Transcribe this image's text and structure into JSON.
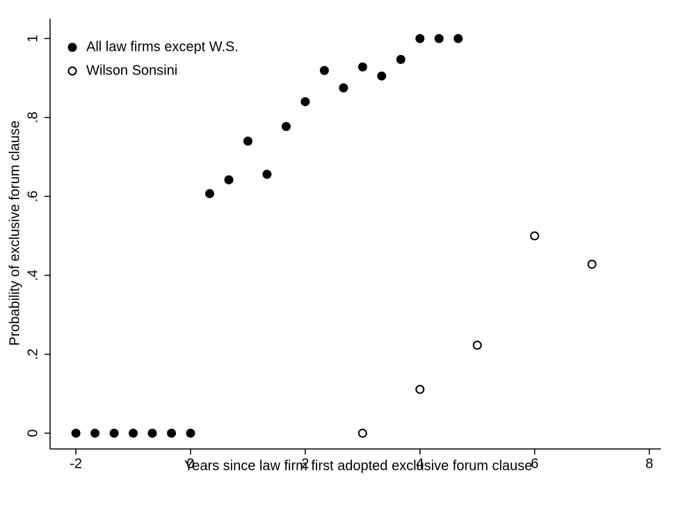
{
  "chart_data": {
    "type": "scatter",
    "xlabel": "Years since law firm first adopted exclusive forum clause",
    "ylabel": "Probability of exclusive forum clause",
    "series": [
      {
        "name": "All law firms except W.S.",
        "color": "#000000",
        "marker": "filled",
        "x": [
          -2,
          -1.667,
          -1.333,
          -1,
          -0.667,
          -0.333,
          0,
          0.333,
          0.667,
          1,
          1.333,
          1.667,
          2,
          2.333,
          2.667,
          3,
          3.333,
          3.667,
          4,
          4.333,
          4.667
        ],
        "values": [
          0,
          0,
          0,
          0,
          0,
          0,
          0,
          0.607,
          0.642,
          0.74,
          0.656,
          0.777,
          0.84,
          0.919,
          0.875,
          0.928,
          0.905,
          0.947,
          1,
          1,
          1
        ]
      },
      {
        "name": "Wilson Sonsini",
        "color": "#000000",
        "marker": "hollow",
        "x": [
          3,
          4,
          5,
          6,
          7
        ],
        "values": [
          0,
          0.111,
          0.223,
          0.5,
          0.428
        ]
      }
    ],
    "xlim": [
      -2.45,
      8.2
    ],
    "xticks": [
      -2,
      0,
      2,
      4,
      6,
      8
    ],
    "ylim": [
      -0.04,
      1.05
    ],
    "yticks": [
      0,
      {
        "value": 0.2,
        "label": ".2"
      },
      {
        "value": 0.4,
        "label": ".4"
      },
      {
        "value": 0.6,
        "label": ".6"
      },
      {
        "value": 0.8,
        "label": ".8"
      },
      1
    ],
    "legend": "top-left",
    "grid": false
  }
}
